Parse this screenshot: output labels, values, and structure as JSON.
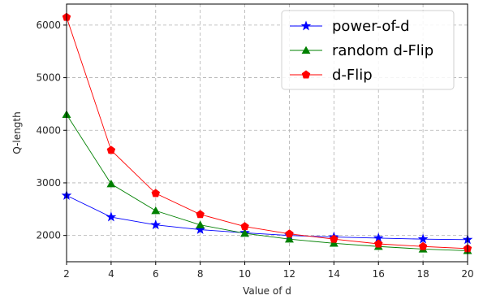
{
  "chart_data": {
    "type": "line",
    "title": "",
    "xlabel": "Value of d",
    "ylabel": "Q-length",
    "xlim": [
      2,
      20
    ],
    "ylim": [
      1500,
      6400
    ],
    "grid": true,
    "legend_position": "top-right",
    "x": [
      2,
      4,
      6,
      8,
      10,
      12,
      14,
      16,
      18,
      20
    ],
    "x_ticks": [
      "2",
      "4",
      "6",
      "8",
      "10",
      "12",
      "14",
      "16",
      "18",
      "20"
    ],
    "y_ticks": [
      "2000",
      "3000",
      "4000",
      "5000",
      "6000"
    ],
    "series": [
      {
        "name": "power-of-d",
        "color": "#0000ff",
        "marker": "star",
        "values": [
          2760,
          2350,
          2200,
          2110,
          2050,
          2000,
          1970,
          1950,
          1930,
          1920
        ]
      },
      {
        "name": "random d-Flip",
        "color": "#008000",
        "marker": "triangle",
        "values": [
          4300,
          2980,
          2470,
          2200,
          2040,
          1930,
          1850,
          1790,
          1740,
          1710
        ]
      },
      {
        "name": "d-Flip",
        "color": "#ff0000",
        "marker": "pentagon",
        "values": [
          6150,
          3620,
          2800,
          2400,
          2170,
          2030,
          1930,
          1840,
          1790,
          1750
        ]
      }
    ]
  }
}
